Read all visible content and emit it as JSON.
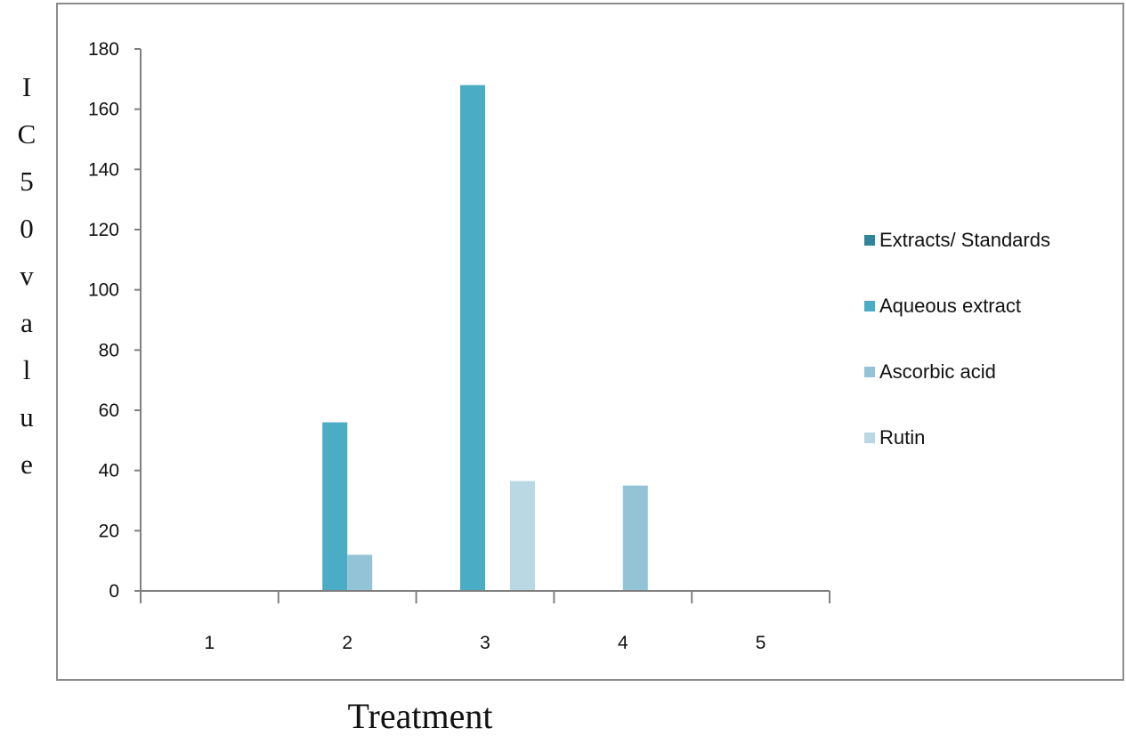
{
  "chart_data": {
    "type": "bar",
    "title": "",
    "xlabel": "Treatment",
    "ylabel": "IC50value",
    "categories": [
      "1",
      "2",
      "3",
      "4",
      "5"
    ],
    "ylim": [
      0,
      180
    ],
    "yticks": [
      0,
      20,
      40,
      60,
      80,
      100,
      120,
      140,
      160,
      180
    ],
    "grid": false,
    "legend_position": "right",
    "series": [
      {
        "name": "Extracts/ Standards",
        "color": "#31849b",
        "values": [
          0,
          0,
          0,
          0,
          0
        ]
      },
      {
        "name": "Aqueous extract",
        "color": "#4bacc6",
        "values": [
          0,
          56,
          168,
          0,
          0
        ]
      },
      {
        "name": "Ascorbic acid",
        "color": "#93c4d6",
        "values": [
          0,
          12,
          0,
          35,
          0
        ]
      },
      {
        "name": "Rutin",
        "color": "#b9d8e4",
        "values": [
          0,
          0,
          36.5,
          0,
          0
        ]
      }
    ]
  }
}
